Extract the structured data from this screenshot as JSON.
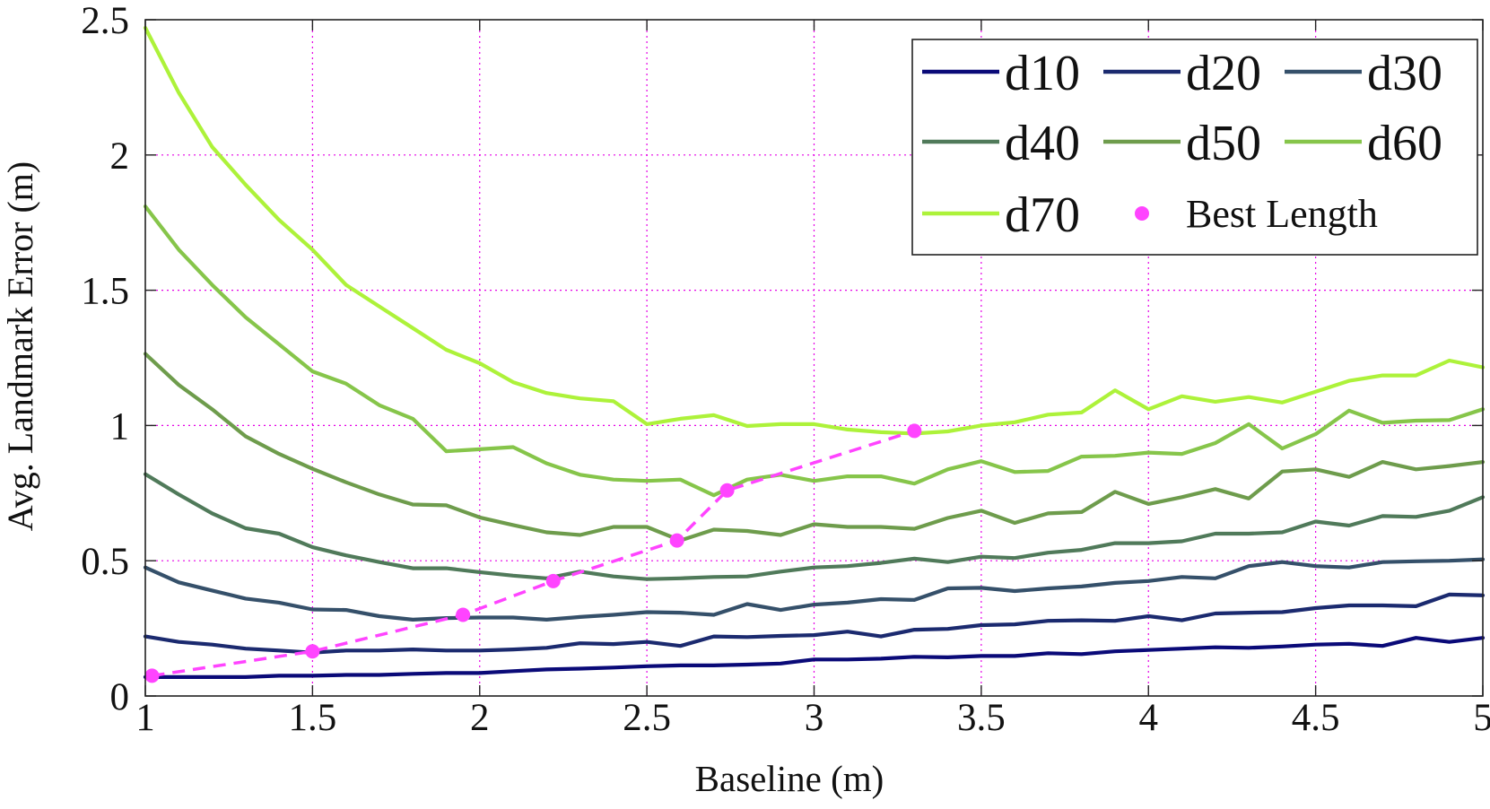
{
  "chart_data": {
    "type": "line",
    "title": "",
    "xlabel": "Baseline (m)",
    "ylabel": "Avg. Landmark Error (m)",
    "xlim": [
      1,
      5
    ],
    "ylim": [
      0,
      2.5
    ],
    "xticks": [
      1,
      1.5,
      2,
      2.5,
      3,
      3.5,
      4,
      4.5,
      5
    ],
    "yticks": [
      0,
      0.5,
      1,
      1.5,
      2,
      2.5
    ],
    "xtick_labels": [
      "1",
      "1.5",
      "2",
      "2.5",
      "3",
      "3.5",
      "4",
      "4.5",
      "5"
    ],
    "ytick_labels": [
      "0",
      "0.5",
      "1",
      "1.5",
      "2",
      "2.5"
    ],
    "grid": true,
    "grid_color": "#e600e6",
    "legend_position": "top-right",
    "x": [
      1.0,
      1.1,
      1.2,
      1.3,
      1.4,
      1.5,
      1.6,
      1.7,
      1.8,
      1.9,
      2.0,
      2.1,
      2.2,
      2.3,
      2.4,
      2.5,
      2.6,
      2.7,
      2.8,
      2.9,
      3.0,
      3.1,
      3.2,
      3.3,
      3.4,
      3.5,
      3.6,
      3.7,
      3.8,
      3.9,
      4.0,
      4.1,
      4.2,
      4.3,
      4.4,
      4.5,
      4.6,
      4.7,
      4.8,
      4.9,
      5.0
    ],
    "series": [
      {
        "name": "d10",
        "color": "#0a0a78",
        "values": [
          0.07,
          0.07,
          0.07,
          0.07,
          0.075,
          0.075,
          0.078,
          0.078,
          0.082,
          0.085,
          0.085,
          0.092,
          0.098,
          0.101,
          0.105,
          0.11,
          0.113,
          0.113,
          0.116,
          0.12,
          0.135,
          0.135,
          0.138,
          0.145,
          0.143,
          0.148,
          0.148,
          0.158,
          0.155,
          0.165,
          0.17,
          0.175,
          0.18,
          0.178,
          0.183,
          0.19,
          0.193,
          0.185,
          0.215,
          0.2,
          0.215
        ]
      },
      {
        "name": "d20",
        "color": "#1b2a6f",
        "values": [
          0.22,
          0.2,
          0.19,
          0.175,
          0.168,
          0.16,
          0.168,
          0.168,
          0.172,
          0.168,
          0.168,
          0.172,
          0.178,
          0.195,
          0.192,
          0.2,
          0.185,
          0.22,
          0.218,
          0.222,
          0.225,
          0.238,
          0.22,
          0.245,
          0.248,
          0.262,
          0.265,
          0.278,
          0.28,
          0.278,
          0.295,
          0.28,
          0.305,
          0.308,
          0.31,
          0.325,
          0.335,
          0.335,
          0.332,
          0.375,
          0.372
        ]
      },
      {
        "name": "d30",
        "color": "#35506a",
        "values": [
          0.475,
          0.42,
          0.39,
          0.36,
          0.345,
          0.32,
          0.318,
          0.295,
          0.282,
          0.288,
          0.29,
          0.29,
          0.282,
          0.292,
          0.3,
          0.31,
          0.308,
          0.3,
          0.34,
          0.318,
          0.338,
          0.345,
          0.358,
          0.355,
          0.398,
          0.4,
          0.388,
          0.398,
          0.405,
          0.418,
          0.425,
          0.44,
          0.435,
          0.48,
          0.495,
          0.48,
          0.475,
          0.495,
          0.498,
          0.5,
          0.505
        ]
      },
      {
        "name": "d40",
        "color": "#507a5a",
        "values": [
          0.82,
          0.745,
          0.675,
          0.62,
          0.6,
          0.55,
          0.52,
          0.495,
          0.472,
          0.472,
          0.458,
          0.445,
          0.435,
          0.46,
          0.442,
          0.432,
          0.435,
          0.44,
          0.442,
          0.46,
          0.475,
          0.48,
          0.492,
          0.508,
          0.495,
          0.515,
          0.51,
          0.53,
          0.54,
          0.565,
          0.565,
          0.572,
          0.6,
          0.6,
          0.605,
          0.645,
          0.63,
          0.665,
          0.662,
          0.685,
          0.735
        ]
      },
      {
        "name": "d50",
        "color": "#6e9c4c",
        "values": [
          1.265,
          1.15,
          1.06,
          0.96,
          0.895,
          0.84,
          0.79,
          0.745,
          0.708,
          0.705,
          0.66,
          0.632,
          0.605,
          0.595,
          0.625,
          0.625,
          0.575,
          0.615,
          0.61,
          0.595,
          0.635,
          0.625,
          0.625,
          0.618,
          0.658,
          0.685,
          0.64,
          0.675,
          0.68,
          0.755,
          0.71,
          0.735,
          0.765,
          0.73,
          0.83,
          0.838,
          0.81,
          0.865,
          0.838,
          0.85,
          0.865
        ]
      },
      {
        "name": "d60",
        "color": "#86c54a",
        "values": [
          1.81,
          1.65,
          1.52,
          1.4,
          1.3,
          1.2,
          1.155,
          1.075,
          1.025,
          0.905,
          0.912,
          0.92,
          0.86,
          0.818,
          0.8,
          0.795,
          0.8,
          0.742,
          0.8,
          0.818,
          0.795,
          0.812,
          0.812,
          0.785,
          0.838,
          0.868,
          0.828,
          0.832,
          0.885,
          0.888,
          0.9,
          0.895,
          0.935,
          1.005,
          0.915,
          0.968,
          1.055,
          1.01,
          1.018,
          1.02,
          1.06
        ]
      },
      {
        "name": "d70",
        "color": "#adf23a",
        "values": [
          2.47,
          2.23,
          2.03,
          1.89,
          1.76,
          1.65,
          1.52,
          1.44,
          1.36,
          1.28,
          1.23,
          1.16,
          1.12,
          1.1,
          1.09,
          1.005,
          1.025,
          1.038,
          0.998,
          1.005,
          1.005,
          0.985,
          0.975,
          0.97,
          0.978,
          1.0,
          1.012,
          1.04,
          1.048,
          1.13,
          1.06,
          1.108,
          1.088,
          1.105,
          1.085,
          1.125,
          1.165,
          1.185,
          1.185,
          1.24,
          1.215
        ]
      }
    ],
    "best_length": {
      "name": "Best Length",
      "color": "#ff44ff",
      "x": [
        1.02,
        1.5,
        1.95,
        2.22,
        2.59,
        2.74,
        3.3
      ],
      "y": [
        0.075,
        0.165,
        0.3,
        0.425,
        0.575,
        0.76,
        0.98
      ]
    }
  }
}
